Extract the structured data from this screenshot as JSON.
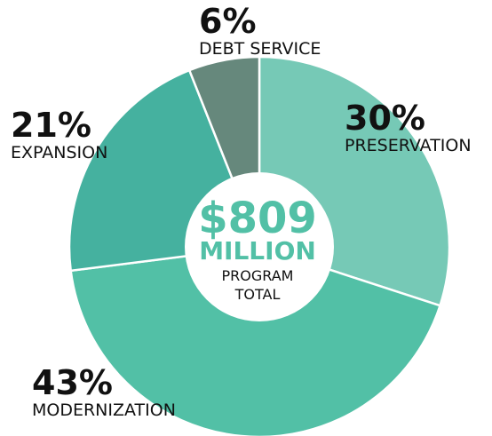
{
  "chart_data": {
    "type": "donut",
    "categories": [
      "PRESERVATION",
      "MODERNIZATION",
      "EXPANSION",
      "DEBT SERVICE"
    ],
    "values": [
      30,
      43,
      21,
      6
    ],
    "value_labels": [
      "30%",
      "43%",
      "21%",
      "6%"
    ],
    "colors": [
      "#76c9b6",
      "#52c0a6",
      "#45b19f",
      "#66887c"
    ],
    "center_text": [
      "$809",
      "MILLION",
      "PROGRAM",
      "TOTAL"
    ]
  }
}
